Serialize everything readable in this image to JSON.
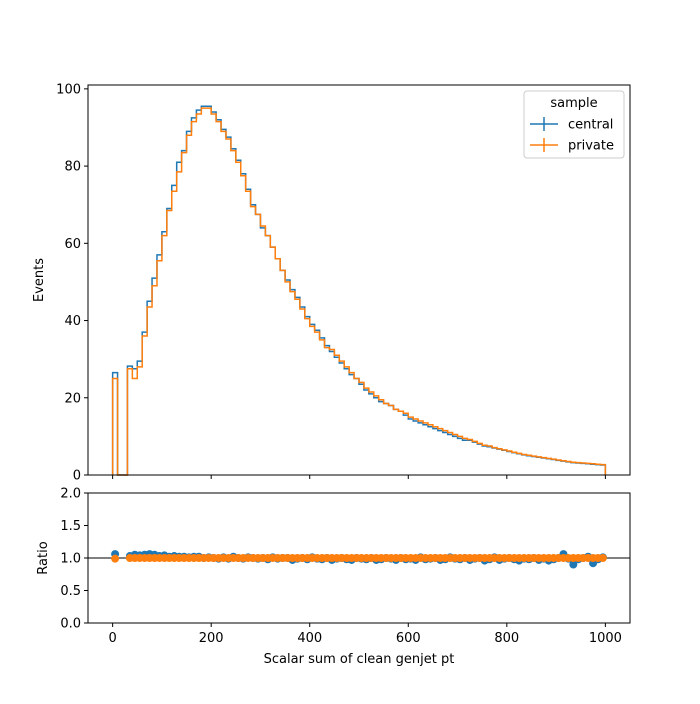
{
  "chart_data": [
    {
      "type": "line",
      "panel": "main",
      "ylabel": "Events",
      "xlim": [
        -50,
        1050
      ],
      "ylim": [
        0,
        101
      ],
      "yticks": [
        0,
        20,
        40,
        60,
        80,
        100
      ],
      "xticks": [
        0,
        200,
        400,
        600,
        800,
        1000
      ],
      "bin_width": 10,
      "bin_edges_start": 0,
      "legend": {
        "title": "sample",
        "position": "top-right"
      },
      "series": [
        {
          "name": "central",
          "color": "#1f77b4",
          "values": [
            26.5,
            0,
            0,
            28.2,
            27.5,
            29.5,
            37,
            45,
            51,
            57,
            63,
            69,
            75,
            81,
            84,
            89,
            92.5,
            94.5,
            95.5,
            95.5,
            94,
            92,
            89.5,
            87.5,
            84.5,
            81.5,
            78,
            74,
            70,
            67.5,
            64,
            62,
            59,
            56,
            53,
            50.5,
            48,
            46,
            43.5,
            41,
            39,
            37.5,
            35.5,
            33.5,
            32,
            30.5,
            29,
            27.5,
            26,
            25,
            23.5,
            22,
            21,
            20,
            19,
            18.5,
            18,
            17,
            16.5,
            15.5,
            14.5,
            14,
            13.5,
            13,
            12.5,
            12,
            11.5,
            11,
            10.5,
            10,
            9.5,
            9,
            9,
            8.5,
            8,
            7.5,
            7.3,
            7,
            6.7,
            6.4,
            6.1,
            5.8,
            5.5,
            5.2,
            5,
            4.8,
            4.6,
            4.4,
            4.2,
            4,
            3.8,
            3.6,
            3.4,
            3.2,
            3.1,
            3,
            2.9,
            2.8,
            2.7,
            2.6
          ]
        },
        {
          "name": "private",
          "color": "#ff7f0e",
          "values": [
            25,
            0,
            0,
            27.5,
            25,
            28,
            36,
            43.5,
            49,
            55.5,
            62,
            68.5,
            73.5,
            78.5,
            83.5,
            88,
            91.5,
            93.5,
            95,
            95,
            93.5,
            91.5,
            89,
            87,
            84,
            81,
            77.5,
            73.5,
            69.5,
            67.5,
            64.5,
            62,
            59,
            56,
            53,
            50,
            47.5,
            45.5,
            43,
            40.5,
            38.5,
            37,
            35,
            33,
            32.5,
            31,
            29.5,
            28,
            26.5,
            25,
            24,
            22.5,
            21.5,
            20.5,
            19.5,
            18.5,
            18,
            17,
            16.5,
            16,
            15,
            14.5,
            14,
            13.5,
            13,
            12.5,
            12,
            11.5,
            11,
            10.5,
            10,
            9.5,
            9.2,
            8.7,
            8.2,
            7.7,
            7.5,
            7.1,
            6.8,
            6.5,
            6.2,
            5.9,
            5.6,
            5.3,
            5.1,
            4.9,
            4.7,
            4.5,
            4.3,
            4.1,
            3.9,
            3.7,
            3.5,
            3.3,
            3.2,
            3.1,
            3,
            2.9,
            2.8,
            2.7
          ]
        }
      ]
    },
    {
      "type": "scatter",
      "panel": "ratio",
      "xlabel": "Scalar sum of clean genjet pt",
      "ylabel": "Ratio",
      "xlim": [
        -50,
        1050
      ],
      "ylim": [
        0,
        2
      ],
      "yticks": [
        "0.0",
        "0.5",
        "1.0",
        "1.5",
        "2.0"
      ],
      "xticks": [
        "0",
        "200",
        "400",
        "600",
        "800",
        "1000"
      ],
      "reference_line": 1.0,
      "series": [
        {
          "name": "central",
          "color": "#1f77b4",
          "values": [
            1.06,
            null,
            null,
            1.03,
            1.05,
            1.04,
            1.05,
            1.06,
            1.05,
            1.03,
            1.04,
            1.02,
            1.03,
            1.02,
            1.02,
            1.01,
            1.02,
            1.02,
            1.0,
            1.01,
            1.0,
            0.99,
            1.01,
            0.99,
            1.02,
            1.0,
            0.99,
            1.01,
            1.0,
            0.99,
            1.0,
            0.98,
            1.01,
            0.99,
            1.0,
            1.0,
            0.97,
            0.99,
            1.0,
            0.98,
            1.01,
            0.99,
            0.98,
            1.0,
            0.97,
            0.99,
            1.0,
            0.98,
            0.97,
            1.0,
            0.99,
            0.98,
            1.0,
            0.97,
            0.98,
            1.0,
            0.99,
            0.97,
            1.0,
            0.98,
            0.99,
            0.97,
            1.01,
            0.98,
            0.99,
            1.0,
            0.97,
            0.98,
            1.01,
            0.99,
            0.98,
            1.0,
            0.97,
            0.99,
            1.0,
            0.96,
            0.98,
            1.01,
            0.97,
            0.99,
            1.0,
            0.98,
            0.96,
            0.99,
            0.98,
            1.0,
            0.97,
            0.99,
            0.96,
            0.98,
            1.0,
            1.06,
            0.99,
            0.9,
            0.98,
            1.0,
            1.02,
            0.92,
            0.98,
            1.01
          ]
        },
        {
          "name": "private",
          "color": "#ff7f0e",
          "values": [
            0.99,
            null,
            null,
            1.0,
            1.0,
            1.0,
            1.0,
            1.0,
            1.0,
            1.0,
            1.0,
            1.0,
            1.0,
            1.0,
            1.0,
            1.0,
            1.0,
            1.0,
            1.0,
            1.0,
            1.0,
            1.0,
            1.0,
            1.0,
            1.0,
            1.0,
            1.0,
            1.0,
            1.0,
            1.0,
            1.0,
            1.0,
            1.0,
            1.0,
            1.0,
            1.0,
            1.0,
            1.0,
            1.0,
            1.0,
            1.0,
            1.0,
            1.0,
            1.0,
            1.0,
            1.0,
            1.0,
            1.0,
            1.0,
            1.0,
            1.0,
            1.0,
            1.0,
            1.0,
            1.0,
            1.0,
            1.0,
            1.0,
            1.0,
            1.0,
            1.0,
            1.0,
            1.0,
            1.0,
            1.0,
            1.0,
            1.0,
            1.0,
            1.0,
            1.0,
            1.0,
            1.0,
            1.0,
            1.0,
            1.0,
            1.0,
            1.0,
            1.0,
            1.0,
            1.0,
            1.0,
            1.0,
            1.0,
            1.0,
            1.0,
            1.0,
            1.0,
            1.0,
            1.0,
            1.0,
            1.0,
            1.0,
            1.0,
            1.0,
            1.0,
            1.0,
            1.0,
            1.0,
            1.0,
            1.0
          ]
        }
      ]
    }
  ]
}
